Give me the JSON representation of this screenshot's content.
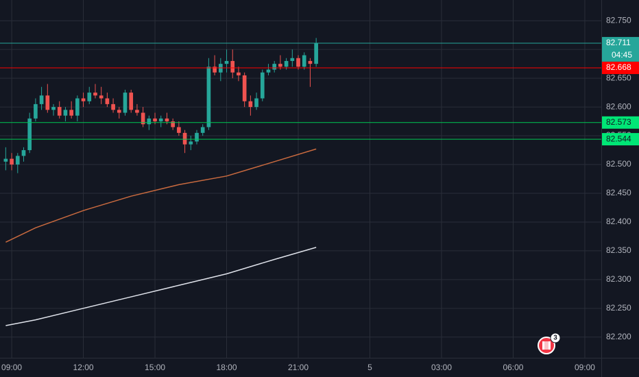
{
  "chart_data": {
    "type": "candlestick",
    "up_color": "#26a69a",
    "down_color": "#ef5350",
    "grid": true,
    "xlim": [
      8.51,
      33.69
    ],
    "xticks": [
      {
        "value": 9,
        "label": "09:00"
      },
      {
        "value": 12,
        "label": "12:00"
      },
      {
        "value": 15,
        "label": "15:00"
      },
      {
        "value": 18,
        "label": "18:00"
      },
      {
        "value": 21,
        "label": "21:00"
      },
      {
        "value": 24,
        "label": "5"
      },
      {
        "value": 27,
        "label": "03:00"
      },
      {
        "value": 30,
        "label": "06:00"
      },
      {
        "value": 33,
        "label": "09:00"
      }
    ],
    "ylim": [
      82.164,
      82.786
    ],
    "yticks": [
      {
        "value": 82.2,
        "label": "82.200"
      },
      {
        "value": 82.25,
        "label": "82.250"
      },
      {
        "value": 82.3,
        "label": "82.300"
      },
      {
        "value": 82.35,
        "label": "82.350"
      },
      {
        "value": 82.4,
        "label": "82.400"
      },
      {
        "value": 82.45,
        "label": "82.450"
      },
      {
        "value": 82.5,
        "label": "82.500"
      },
      {
        "value": 82.55,
        "label": "82.550"
      },
      {
        "value": 82.6,
        "label": "82.600"
      },
      {
        "value": 82.65,
        "label": "82.650"
      },
      {
        "value": 82.7,
        "label": "82.700"
      },
      {
        "value": 82.75,
        "label": "82.750"
      }
    ],
    "x": [
      8.75,
      9,
      9.25,
      9.5,
      9.75,
      10,
      10.25,
      10.5,
      10.75,
      11,
      11.25,
      11.5,
      11.75,
      12,
      12.25,
      12.5,
      12.75,
      13,
      13.25,
      13.5,
      13.75,
      14,
      14.25,
      14.5,
      14.75,
      15,
      15.25,
      15.5,
      15.75,
      16,
      16.25,
      16.5,
      16.75,
      17,
      17.25,
      17.5,
      17.75,
      18,
      18.25,
      18.5,
      18.75,
      19,
      19.25,
      19.5,
      19.75,
      20,
      20.25,
      20.5,
      20.75,
      21,
      21.25,
      21.5,
      21.75
    ],
    "open": [
      82.505,
      82.51,
      82.5,
      82.515,
      82.525,
      82.58,
      82.605,
      82.62,
      82.595,
      82.6,
      82.585,
      82.595,
      82.585,
      82.615,
      82.61,
      82.625,
      82.62,
      82.615,
      82.605,
      82.595,
      82.59,
      82.625,
      82.595,
      82.59,
      82.57,
      82.58,
      82.575,
      82.58,
      82.575,
      82.565,
      82.555,
      82.535,
      82.54,
      82.555,
      82.565,
      82.67,
      82.66,
      82.675,
      82.68,
      82.66,
      82.655,
      82.61,
      82.6,
      82.615,
      82.66,
      82.665,
      82.675,
      82.67,
      82.68,
      82.685,
      82.67,
      82.68,
      82.675
    ],
    "high": [
      82.53,
      82.52,
      82.52,
      82.53,
      82.59,
      82.615,
      82.635,
      82.64,
      82.605,
      82.61,
      82.6,
      82.61,
      82.62,
      82.625,
      82.635,
      82.64,
      82.635,
      82.625,
      82.615,
      82.6,
      82.63,
      82.63,
      82.605,
      82.6,
      82.585,
      82.59,
      82.585,
      82.59,
      82.58,
      82.575,
      82.56,
      82.55,
      82.56,
      82.57,
      82.685,
      82.69,
      82.685,
      82.7,
      82.7,
      82.67,
      82.66,
      82.62,
      82.625,
      82.665,
      82.675,
      82.68,
      82.69,
      82.685,
      82.7,
      82.69,
      82.695,
      82.685,
      82.72
    ],
    "low": [
      82.49,
      82.49,
      82.485,
      82.505,
      82.52,
      82.575,
      82.595,
      82.59,
      82.585,
      82.58,
      82.575,
      82.58,
      82.575,
      82.6,
      82.605,
      82.615,
      82.605,
      82.6,
      82.59,
      82.58,
      82.585,
      82.59,
      82.585,
      82.565,
      82.56,
      82.57,
      82.565,
      82.57,
      82.56,
      82.55,
      82.52,
      82.525,
      82.535,
      82.55,
      82.56,
      82.655,
      82.645,
      82.66,
      82.65,
      82.645,
      82.6,
      82.585,
      82.595,
      82.61,
      82.655,
      82.66,
      82.665,
      82.665,
      82.67,
      82.665,
      82.665,
      82.635,
      82.67
    ],
    "close": [
      82.51,
      82.5,
      82.515,
      82.525,
      82.58,
      82.605,
      82.62,
      82.595,
      82.6,
      82.585,
      82.595,
      82.585,
      82.615,
      82.61,
      82.625,
      82.62,
      82.615,
      82.605,
      82.595,
      82.59,
      82.625,
      82.595,
      82.59,
      82.57,
      82.58,
      82.575,
      82.58,
      82.575,
      82.565,
      82.555,
      82.535,
      82.54,
      82.555,
      82.565,
      82.67,
      82.66,
      82.675,
      82.68,
      82.66,
      82.655,
      82.61,
      82.6,
      82.615,
      82.66,
      82.665,
      82.675,
      82.67,
      82.68,
      82.685,
      82.67,
      82.69,
      82.675,
      82.711
    ],
    "lines": [
      {
        "color": "#c96a3f",
        "x": [
          8.75,
          10,
          12,
          14,
          16,
          18,
          20,
          21.75
        ],
        "values": [
          82.365,
          82.39,
          82.42,
          82.445,
          82.465,
          82.48,
          82.505,
          82.527
        ]
      },
      {
        "color": "#e0e3eb",
        "x": [
          8.75,
          10,
          12,
          14,
          16,
          18,
          20,
          21.75
        ],
        "values": [
          82.22,
          82.23,
          82.25,
          82.27,
          82.29,
          82.31,
          82.335,
          82.356
        ]
      }
    ],
    "price_lines": [
      {
        "value": 82.711,
        "color": "#26a69a",
        "label_bg": "#26a69a",
        "label_color": "#ffffff",
        "countdown": "04:45"
      },
      {
        "value": 82.668,
        "color": "#ff0000",
        "label_bg": "#ff0000",
        "label_color": "#ffffff"
      },
      {
        "value": 82.573,
        "color": "#00c853",
        "label_bg": "#00e676",
        "label_color": "#131722"
      },
      {
        "value": 82.544,
        "color": "#00c853",
        "label_bg": "#00e676",
        "label_color": "#131722"
      }
    ],
    "event_badge": "3"
  }
}
